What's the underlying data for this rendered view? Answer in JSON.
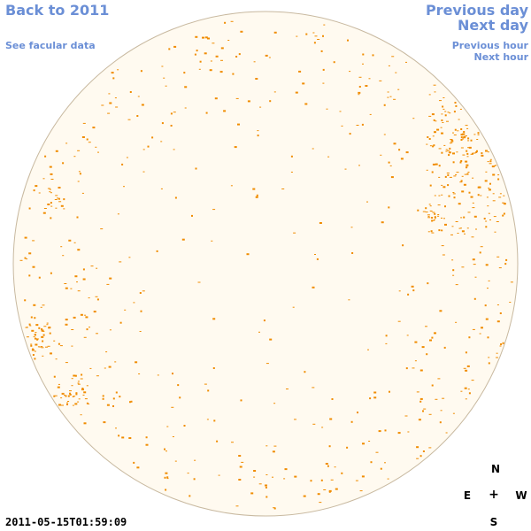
{
  "nav": {
    "back_label": "Back to 2011",
    "facular_label": "See facular data",
    "prev_day_label": "Previous day",
    "next_day_label": "Next day",
    "prev_hour_label": "Previous hour",
    "next_hour_label": "Next hour"
  },
  "compass": {
    "north": "N",
    "east": "E",
    "center": "+",
    "west": "W",
    "south": "S"
  },
  "timestamp": "2011-05-15T01:59:09",
  "colors": {
    "link": "#6b8fd6",
    "disk_fill": "#fffaf0",
    "disk_edge": "#c8b9a0",
    "facula": "#f08c00"
  }
}
